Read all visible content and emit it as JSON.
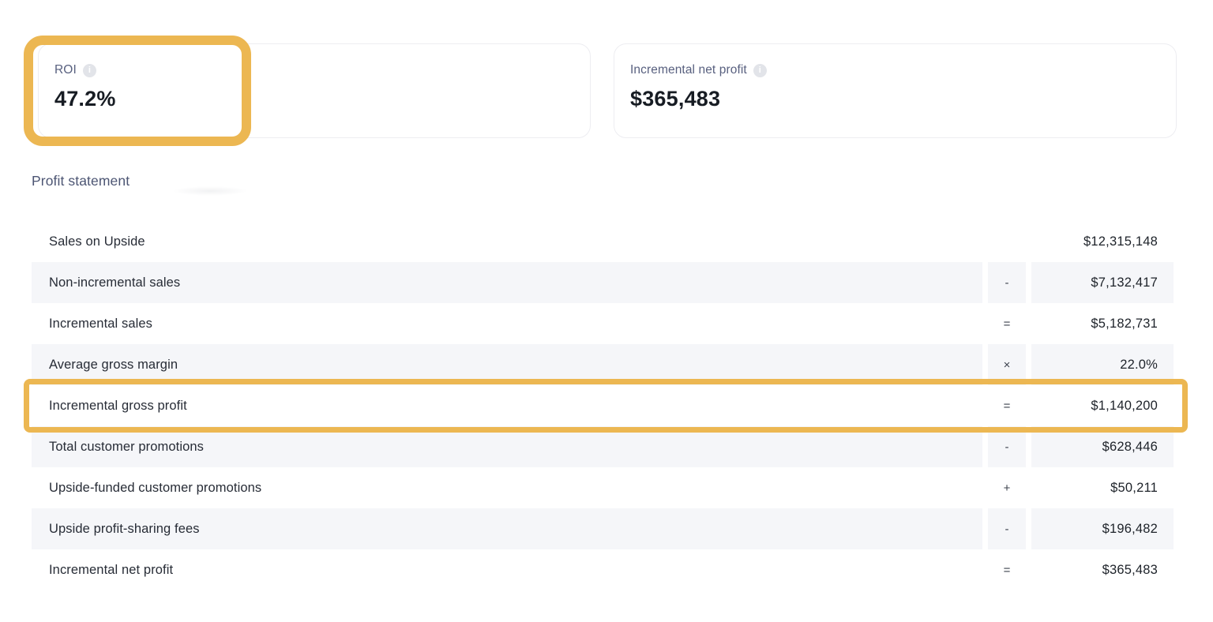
{
  "metrics": [
    {
      "id": "roi",
      "label": "ROI",
      "value": "47.2%",
      "info_icon": "info-circle"
    },
    {
      "id": "incremental_net_profit",
      "label": "Incremental net profit",
      "value": "$365,483",
      "info_icon": "info-circle"
    }
  ],
  "section": {
    "title": "Profit statement"
  },
  "statement": {
    "rows": [
      {
        "label": "Sales on Upside",
        "operator": "",
        "value": "$12,315,148",
        "striped": false,
        "highlighted": false
      },
      {
        "label": "Non-incremental sales",
        "operator": "-",
        "value": "$7,132,417",
        "striped": true,
        "highlighted": false
      },
      {
        "label": "Incremental sales",
        "operator": "=",
        "value": "$5,182,731",
        "striped": false,
        "highlighted": false
      },
      {
        "label": "Average gross margin",
        "operator": "×",
        "value": "22.0%",
        "striped": true,
        "highlighted": false
      },
      {
        "label": "Incremental gross profit",
        "operator": "=",
        "value": "$1,140,200",
        "striped": false,
        "highlighted": true
      },
      {
        "label": "Total customer promotions",
        "operator": "-",
        "value": "$628,446",
        "striped": true,
        "highlighted": false
      },
      {
        "label": "Upside-funded customer promotions",
        "operator": "+",
        "value": "$50,211",
        "striped": false,
        "highlighted": false
      },
      {
        "label": "Upside profit-sharing fees",
        "operator": "-",
        "value": "$196,482",
        "striped": true,
        "highlighted": false
      },
      {
        "label": "Incremental net profit",
        "operator": "=",
        "value": "$365,483",
        "striped": false,
        "highlighted": false
      }
    ]
  },
  "icons": {
    "info_glyph": "i"
  },
  "colors": {
    "annotation_gold": "#ecb752",
    "stripe_bg": "#f5f6f9",
    "card_border": "#ededf1",
    "label_slate": "#58607f",
    "title_slate": "#4c5573",
    "text_dark": "#171c23"
  },
  "annotations": {
    "roi_card_highlight": "gold-rounded-box",
    "gross_profit_row_highlight": "gold-rounded-box"
  }
}
